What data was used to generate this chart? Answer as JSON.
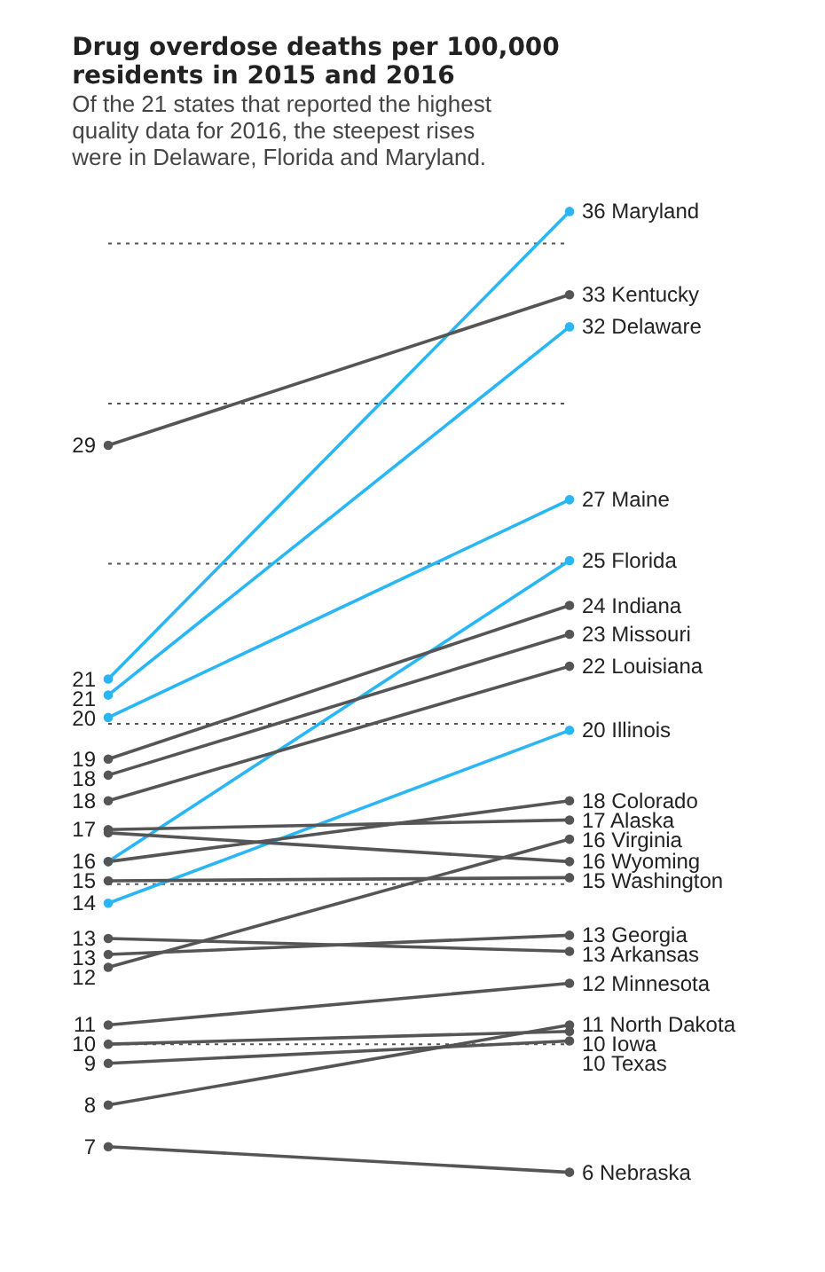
{
  "chart_data": {
    "type": "line",
    "title": "Drug overdose deaths per 100,000 residents in 2015 and 2016",
    "subtitle": "Of the 21 states that reported the highest quality data for 2016, the steepest rises were in Delaware, Florida and Maryland.",
    "categories": [
      null,
      null
    ],
    "ref_lines": [
      {
        "axis": "y",
        "value": 10,
        "line_style": "dotted"
      },
      {
        "axis": "y",
        "value": 15,
        "line_style": "dotted"
      },
      {
        "axis": "y",
        "value": 20,
        "line_style": "dotted"
      },
      {
        "axis": "y",
        "value": 25,
        "line_style": "dotted"
      },
      {
        "axis": "y",
        "value": 30,
        "line_style": "dotted"
      },
      {
        "axis": "y",
        "value": 35,
        "line_style": "dotted"
      }
    ],
    "marker": "circle",
    "line_style": "solid",
    "series": [
      {
        "name": "Maryland",
        "color": "#29b6f6",
        "values": [
          21.4,
          36.0
        ],
        "value_labels": [
          "21",
          "36"
        ]
      },
      {
        "name": "Kentucky",
        "color": "#555555",
        "values": [
          28.7,
          33.4
        ],
        "value_labels": [
          "29",
          "33"
        ]
      },
      {
        "name": "Delaware",
        "color": "#29b6f6",
        "values": [
          20.9,
          32.4
        ],
        "value_labels": [
          "21",
          "32"
        ]
      },
      {
        "name": "Maine",
        "color": "#29b6f6",
        "values": [
          20.2,
          27.0
        ],
        "value_labels": [
          "20",
          "27"
        ]
      },
      {
        "name": "Florida",
        "color": "#29b6f6",
        "values": [
          15.7,
          25.1
        ],
        "value_labels": [
          "16",
          "25"
        ]
      },
      {
        "name": "Indiana",
        "color": "#555555",
        "values": [
          18.9,
          23.7
        ],
        "value_labels": [
          "19",
          "24"
        ]
      },
      {
        "name": "Missouri",
        "color": "#555555",
        "values": [
          18.4,
          22.8
        ],
        "value_labels": [
          "18",
          "23"
        ]
      },
      {
        "name": "Louisiana",
        "color": "#555555",
        "values": [
          17.6,
          21.8
        ],
        "value_labels": [
          "18",
          "22"
        ]
      },
      {
        "name": "Illinois",
        "color": "#29b6f6",
        "values": [
          14.4,
          19.8
        ],
        "value_labels": [
          "14",
          "20"
        ]
      },
      {
        "name": "Colorado",
        "color": "#555555",
        "values": [
          15.7,
          17.6
        ],
        "value_labels": [
          null,
          "18"
        ]
      },
      {
        "name": "Alaska",
        "color": "#555555",
        "values": [
          16.7,
          17.0
        ],
        "value_labels": [
          "17",
          "17"
        ]
      },
      {
        "name": "Virginia",
        "color": "#555555",
        "values": [
          12.4,
          16.4
        ],
        "value_labels": [
          "12",
          "16"
        ]
      },
      {
        "name": "Wyoming",
        "color": "#555555",
        "values": [
          16.6,
          15.7
        ],
        "value_labels": [
          null,
          "16"
        ]
      },
      {
        "name": "Washington",
        "color": "#555555",
        "values": [
          15.1,
          15.2
        ],
        "value_labels": [
          "15",
          "15"
        ]
      },
      {
        "name": "Georgia",
        "color": "#555555",
        "values": [
          12.8,
          13.4
        ],
        "value_labels": [
          "13",
          "13"
        ]
      },
      {
        "name": "Arkansas",
        "color": "#555555",
        "values": [
          13.3,
          12.9
        ],
        "value_labels": [
          "13",
          "13"
        ]
      },
      {
        "name": "Minnesota",
        "color": "#555555",
        "values": [
          10.6,
          11.9
        ],
        "value_labels": [
          "11",
          "12"
        ]
      },
      {
        "name": "North Dakota",
        "color": "#555555",
        "values": [
          8.1,
          10.6
        ],
        "value_labels": [
          "8",
          "11"
        ]
      },
      {
        "name": "Iowa",
        "color": "#555555",
        "values": [
          10.0,
          10.4
        ],
        "value_labels": [
          "10",
          "10"
        ]
      },
      {
        "name": "Texas",
        "color": "#555555",
        "values": [
          9.4,
          10.1
        ],
        "value_labels": [
          "9",
          "10"
        ]
      },
      {
        "name": "Nebraska",
        "color": "#555555",
        "values": [
          6.8,
          6.0
        ],
        "value_labels": [
          "7",
          "6"
        ]
      }
    ]
  }
}
